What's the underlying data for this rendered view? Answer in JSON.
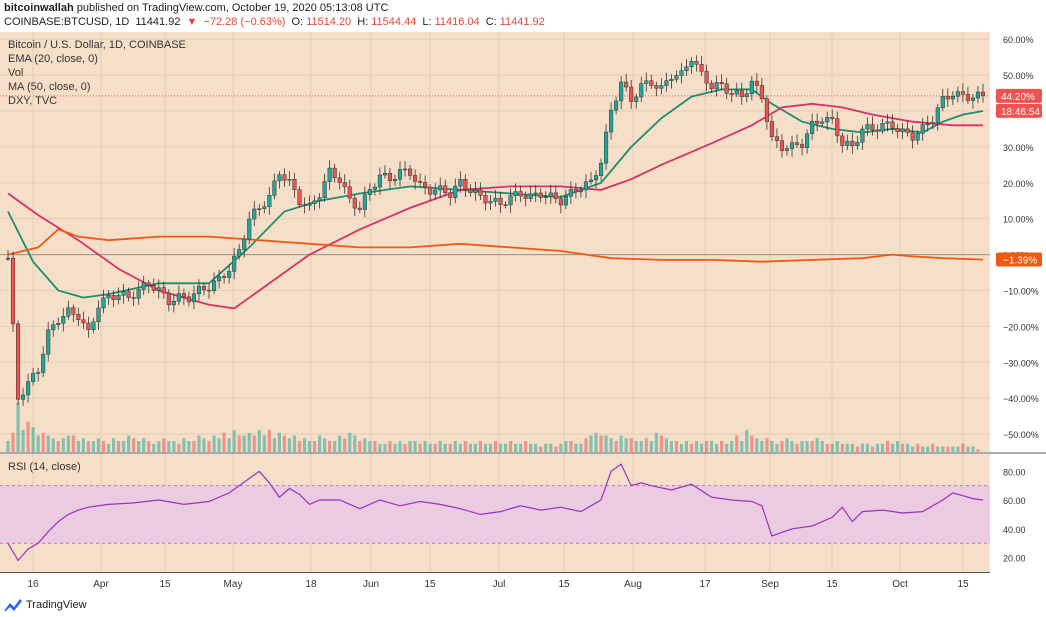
{
  "header": {
    "publisher": "bitcoinwallah",
    "published_text": "published on TradingView.com, October 19, 2020 05:13:08 UTC",
    "symbol": "COINBASE:BTCUSD, 1D",
    "last": "11441.92",
    "change": "−72.28 (−0.63%)",
    "o_label": "O:",
    "o_value": "11514.20",
    "h_label": "H:",
    "h_value": "11544.44",
    "l_label": "L:",
    "l_value": "11416.04",
    "c_label": "C:",
    "c_value": "11441.92"
  },
  "legend": {
    "title": "Bitcoin / U.S. Dollar, 1D, COINBASE",
    "ema": "EMA (20, close, 0)",
    "vol": "Vol",
    "ma": "MA (50, close, 0)",
    "dxy": "DXY, TVC",
    "rsi": "RSI (14, close)"
  },
  "badges": {
    "price_pct": "44.20%",
    "countdown": "18:46:54",
    "dxy_pct": "−1.39%"
  },
  "footer": {
    "brand": "TradingView"
  },
  "colors": {
    "bg": "#f5dfc9",
    "up": "#26a69a",
    "down": "#ef5350",
    "ema": "#1e8c6e",
    "ma": "#d6326a",
    "dxy": "#ee5a12",
    "rsi": "#9c2fbf",
    "rsi_band": "#e8c8e6"
  },
  "chart_data": {
    "type": "line",
    "x_tick_labels": [
      "16",
      "Apr",
      "15",
      "May",
      "18",
      "Jun",
      "15",
      "Jul",
      "15",
      "Aug",
      "17",
      "Sep",
      "15",
      "Oct",
      "15"
    ],
    "price_axis_labels": [
      "60.00%",
      "50.00%",
      "40.00%",
      "30.00%",
      "20.00%",
      "10.00%",
      "0.00%",
      "−10.00%",
      "−20.00%",
      "−30.00%",
      "−40.00%",
      "−50.00%"
    ],
    "price_axis_range_pct": [
      -55,
      62
    ],
    "rsi_axis_labels": [
      "80.00",
      "60.00",
      "40.00",
      "20.00"
    ],
    "rsi_band": [
      30,
      70
    ],
    "series": [
      {
        "name": "BTCUSD",
        "points": [
          [
            0,
            -1
          ],
          [
            2,
            -40
          ],
          [
            4,
            -36
          ],
          [
            6,
            -32
          ],
          [
            8,
            -22
          ],
          [
            10,
            -18
          ],
          [
            12,
            -16
          ],
          [
            14,
            -17
          ],
          [
            16,
            -22
          ],
          [
            18,
            -14
          ],
          [
            20,
            -12
          ],
          [
            22,
            -11
          ],
          [
            24,
            -12
          ],
          [
            26,
            -10
          ],
          [
            28,
            -8
          ],
          [
            30,
            -10
          ],
          [
            32,
            -13
          ],
          [
            34,
            -12
          ],
          [
            36,
            -12
          ],
          [
            38,
            -10
          ],
          [
            40,
            -9
          ],
          [
            42,
            -7
          ],
          [
            44,
            -4
          ],
          [
            46,
            1
          ],
          [
            48,
            10
          ],
          [
            50,
            13
          ],
          [
            52,
            16
          ],
          [
            54,
            23
          ],
          [
            56,
            20
          ],
          [
            58,
            15
          ],
          [
            60,
            13
          ],
          [
            62,
            17
          ],
          [
            64,
            23
          ],
          [
            66,
            21
          ],
          [
            68,
            15
          ],
          [
            70,
            13
          ],
          [
            72,
            18
          ],
          [
            74,
            22
          ],
          [
            76,
            21
          ],
          [
            78,
            23
          ],
          [
            80,
            23
          ],
          [
            82,
            19
          ],
          [
            84,
            18
          ],
          [
            86,
            18
          ],
          [
            88,
            17
          ],
          [
            90,
            20
          ],
          [
            92,
            18
          ],
          [
            94,
            16
          ],
          [
            96,
            15
          ],
          [
            98,
            14
          ],
          [
            100,
            16
          ],
          [
            102,
            17
          ],
          [
            104,
            16
          ],
          [
            106,
            17
          ],
          [
            108,
            16
          ],
          [
            110,
            15
          ],
          [
            112,
            17
          ],
          [
            114,
            19
          ],
          [
            116,
            20
          ],
          [
            118,
            26
          ],
          [
            120,
            40
          ],
          [
            122,
            48
          ],
          [
            124,
            43
          ],
          [
            126,
            47
          ],
          [
            128,
            48
          ],
          [
            130,
            46
          ],
          [
            132,
            50
          ],
          [
            134,
            50
          ],
          [
            136,
            55
          ],
          [
            138,
            50
          ],
          [
            140,
            47
          ],
          [
            142,
            47
          ],
          [
            144,
            45
          ],
          [
            146,
            44
          ],
          [
            148,
            48
          ],
          [
            150,
            44
          ],
          [
            152,
            32
          ],
          [
            154,
            30
          ],
          [
            156,
            30
          ],
          [
            158,
            31
          ],
          [
            160,
            36
          ],
          [
            162,
            38
          ],
          [
            164,
            37
          ],
          [
            166,
            31
          ],
          [
            168,
            30
          ],
          [
            170,
            35
          ],
          [
            172,
            35
          ],
          [
            174,
            36
          ],
          [
            176,
            36
          ],
          [
            178,
            34
          ],
          [
            180,
            33
          ],
          [
            182,
            35
          ],
          [
            184,
            38
          ],
          [
            186,
            43
          ],
          [
            188,
            45
          ],
          [
            190,
            44
          ],
          [
            192,
            44
          ],
          [
            194,
            44.2
          ]
        ]
      },
      {
        "name": "EMA (20, close, 0)",
        "points": [
          [
            0,
            12
          ],
          [
            5,
            -2
          ],
          [
            10,
            -10
          ],
          [
            15,
            -12
          ],
          [
            20,
            -11
          ],
          [
            30,
            -8
          ],
          [
            40,
            -8
          ],
          [
            48,
            2
          ],
          [
            55,
            12
          ],
          [
            62,
            15
          ],
          [
            70,
            17
          ],
          [
            80,
            19
          ],
          [
            90,
            18
          ],
          [
            100,
            17
          ],
          [
            110,
            16
          ],
          [
            118,
            20
          ],
          [
            124,
            30
          ],
          [
            130,
            38
          ],
          [
            136,
            44
          ],
          [
            142,
            46
          ],
          [
            148,
            46
          ],
          [
            152,
            42
          ],
          [
            158,
            37
          ],
          [
            164,
            35
          ],
          [
            170,
            34
          ],
          [
            176,
            35
          ],
          [
            182,
            34
          ],
          [
            186,
            37
          ],
          [
            190,
            39
          ],
          [
            194,
            40
          ]
        ]
      },
      {
        "name": "MA (50, close, 0)",
        "points": [
          [
            0,
            17
          ],
          [
            6,
            11
          ],
          [
            14,
            4
          ],
          [
            22,
            -4
          ],
          [
            30,
            -10
          ],
          [
            40,
            -14
          ],
          [
            45,
            -15
          ],
          [
            50,
            -10
          ],
          [
            60,
            0
          ],
          [
            70,
            7
          ],
          [
            80,
            13
          ],
          [
            90,
            18
          ],
          [
            100,
            19
          ],
          [
            110,
            19
          ],
          [
            118,
            18
          ],
          [
            124,
            21
          ],
          [
            130,
            25
          ],
          [
            140,
            31
          ],
          [
            148,
            36
          ],
          [
            154,
            41
          ],
          [
            160,
            42
          ],
          [
            166,
            41
          ],
          [
            172,
            39
          ],
          [
            180,
            37
          ],
          [
            188,
            36
          ],
          [
            194,
            36
          ]
        ]
      },
      {
        "name": "DXY, TVC",
        "points": [
          [
            0,
            0
          ],
          [
            6,
            2
          ],
          [
            10,
            7
          ],
          [
            14,
            5
          ],
          [
            20,
            4
          ],
          [
            30,
            5
          ],
          [
            40,
            5
          ],
          [
            50,
            4
          ],
          [
            60,
            3
          ],
          [
            70,
            2
          ],
          [
            80,
            2
          ],
          [
            90,
            3
          ],
          [
            100,
            2
          ],
          [
            110,
            1
          ],
          [
            120,
            -1
          ],
          [
            130,
            -1.5
          ],
          [
            140,
            -1.5
          ],
          [
            150,
            -2
          ],
          [
            160,
            -1.5
          ],
          [
            170,
            -1
          ],
          [
            176,
            0
          ],
          [
            180,
            -0.5
          ],
          [
            186,
            -1
          ],
          [
            194,
            -1.39
          ]
        ]
      },
      {
        "name": "RSI (14, close)",
        "points": [
          [
            0,
            30
          ],
          [
            2,
            18
          ],
          [
            4,
            26
          ],
          [
            6,
            30
          ],
          [
            8,
            38
          ],
          [
            10,
            45
          ],
          [
            12,
            50
          ],
          [
            14,
            53
          ],
          [
            16,
            55
          ],
          [
            20,
            57
          ],
          [
            25,
            58
          ],
          [
            30,
            60
          ],
          [
            35,
            57
          ],
          [
            40,
            59
          ],
          [
            44,
            65
          ],
          [
            48,
            75
          ],
          [
            50,
            80
          ],
          [
            52,
            72
          ],
          [
            54,
            62
          ],
          [
            56,
            68
          ],
          [
            58,
            64
          ],
          [
            60,
            57
          ],
          [
            62,
            60
          ],
          [
            66,
            60
          ],
          [
            70,
            54
          ],
          [
            74,
            60
          ],
          [
            78,
            56
          ],
          [
            82,
            59
          ],
          [
            86,
            57
          ],
          [
            90,
            54
          ],
          [
            94,
            50
          ],
          [
            98,
            52
          ],
          [
            102,
            56
          ],
          [
            106,
            53
          ],
          [
            110,
            55
          ],
          [
            114,
            52
          ],
          [
            118,
            60
          ],
          [
            120,
            80
          ],
          [
            122,
            85
          ],
          [
            124,
            70
          ],
          [
            126,
            72
          ],
          [
            128,
            70
          ],
          [
            132,
            67
          ],
          [
            136,
            71
          ],
          [
            140,
            62
          ],
          [
            144,
            60
          ],
          [
            148,
            59
          ],
          [
            150,
            56
          ],
          [
            152,
            35
          ],
          [
            156,
            40
          ],
          [
            160,
            42
          ],
          [
            164,
            48
          ],
          [
            166,
            55
          ],
          [
            168,
            45
          ],
          [
            170,
            52
          ],
          [
            174,
            53
          ],
          [
            178,
            51
          ],
          [
            182,
            52
          ],
          [
            186,
            60
          ],
          [
            188,
            65
          ],
          [
            190,
            63
          ],
          [
            192,
            61
          ],
          [
            194,
            60
          ]
        ]
      }
    ],
    "volume_relative": [
      0.2,
      0.35,
      0.9,
      0.4,
      0.55,
      0.45,
      0.3,
      0.35,
      0.3,
      0.25,
      0.2,
      0.25,
      0.3,
      0.3,
      0.2,
      0.25,
      0.2,
      0.2,
      0.25,
      0.2,
      0.15,
      0.25,
      0.2,
      0.2,
      0.3,
      0.25,
      0.2,
      0.25,
      0.2,
      0.15,
      0.2,
      0.25,
      0.2,
      0.2,
      0.15,
      0.25,
      0.2,
      0.2,
      0.3,
      0.25,
      0.2,
      0.3,
      0.25,
      0.35,
      0.25,
      0.4,
      0.3,
      0.3,
      0.35,
      0.3,
      0.4,
      0.3,
      0.4,
      0.25,
      0.35,
      0.3,
      0.25,
      0.3,
      0.2,
      0.25,
      0.2,
      0.2,
      0.3,
      0.25,
      0.2,
      0.2,
      0.3,
      0.25,
      0.35,
      0.3,
      0.2,
      0.25,
      0.2,
      0.2,
      0.15,
      0.15,
      0.2,
      0.15,
      0.2,
      0.15,
      0.2,
      0.2,
      0.15,
      0.2,
      0.15,
      0.15,
      0.2,
      0.15,
      0.15,
      0.2,
      0.15,
      0.2,
      0.15,
      0.15,
      0.2,
      0.15,
      0.15,
      0.2,
      0.15,
      0.15,
      0.2,
      0.15,
      0.15,
      0.2,
      0.15,
      0.15,
      0.1,
      0.15,
      0.15,
      0.1,
      0.15,
      0.2,
      0.2,
      0.15,
      0.15,
      0.25,
      0.3,
      0.35,
      0.3,
      0.3,
      0.25,
      0.2,
      0.3,
      0.25,
      0.25,
      0.2,
      0.2,
      0.25,
      0.2,
      0.35,
      0.3,
      0.25,
      0.2,
      0.2,
      0.15,
      0.2,
      0.15,
      0.2,
      0.15,
      0.2,
      0.2,
      0.15,
      0.2,
      0.15,
      0.2,
      0.3,
      0.2,
      0.4,
      0.3,
      0.25,
      0.2,
      0.25,
      0.2,
      0.15,
      0.2,
      0.25,
      0.2,
      0.15,
      0.2,
      0.2,
      0.2,
      0.25,
      0.2,
      0.15,
      0.15,
      0.2,
      0.15,
      0.15,
      0.15,
      0.1,
      0.15,
      0.15,
      0.1,
      0.15,
      0.15,
      0.2,
      0.15,
      0.2,
      0.15,
      0.15,
      0.1,
      0.15,
      0.1,
      0.1,
      0.15,
      0.1,
      0.1,
      0.1,
      0.1,
      0.1,
      0.15,
      0.1,
      0.1,
      0.05
    ]
  }
}
